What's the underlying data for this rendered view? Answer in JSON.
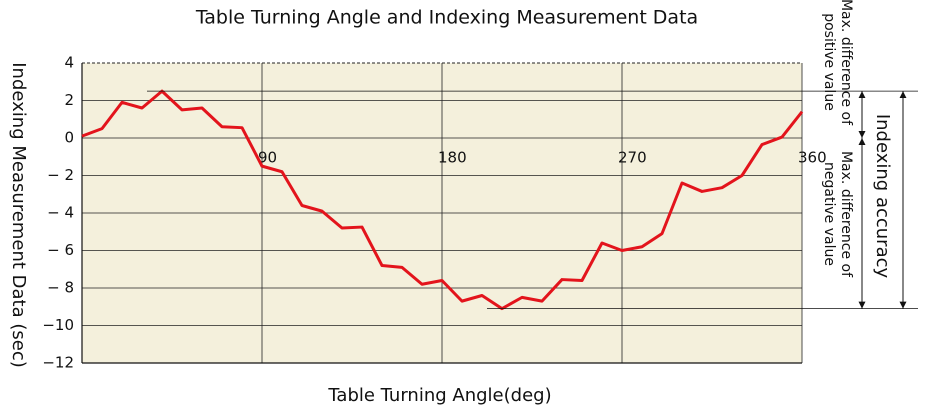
{
  "chart_data": {
    "type": "line",
    "title": "Table Turning Angle and Indexing Measurement Data",
    "x_label": "Table Turning Angle(deg)",
    "y_label": "Indexing Measurement Data (sec)",
    "x": [
      0,
      10,
      20,
      30,
      40,
      50,
      60,
      70,
      80,
      90,
      100,
      110,
      120,
      130,
      140,
      150,
      160,
      170,
      180,
      190,
      200,
      210,
      220,
      230,
      240,
      250,
      260,
      270,
      280,
      290,
      300,
      310,
      320,
      330,
      340,
      350,
      360
    ],
    "series": [
      {
        "color": "#e3141c",
        "values": [
          0.1,
          0.5,
          1.9,
          1.6,
          2.5,
          1.5,
          1.6,
          0.6,
          0.55,
          -1.5,
          -1.8,
          -3.6,
          -3.9,
          -4.8,
          -4.75,
          -6.8,
          -6.9,
          -7.8,
          -7.6,
          -8.7,
          -8.4,
          -9.1,
          -8.5,
          -8.7,
          -7.55,
          -7.6,
          -5.6,
          -6.0,
          -5.8,
          -5.1,
          -2.4,
          -2.85,
          -2.65,
          -2.0,
          -0.35,
          0.05,
          1.4
        ]
      }
    ],
    "xlim": [
      0,
      360
    ],
    "xticks": [
      90,
      180,
      270,
      360
    ],
    "ylim": [
      -12,
      4
    ],
    "yticks": [
      4,
      2,
      0,
      {
        "value": -2,
        "label": "− 2"
      },
      {
        "value": -4,
        "label": "− 4"
      },
      {
        "value": -6,
        "label": "− 6"
      },
      {
        "value": -8,
        "label": "− 8"
      },
      {
        "value": -10,
        "label": "−10"
      },
      {
        "value": -12,
        "label": "−12"
      }
    ],
    "grid": true,
    "background": "#f4f0dc",
    "annotations": {
      "positive": [
        "Max. difference of",
        "positive value"
      ],
      "negative": [
        "Max. difference of",
        "negative value"
      ],
      "accuracy": "Indexing accuracy"
    }
  }
}
